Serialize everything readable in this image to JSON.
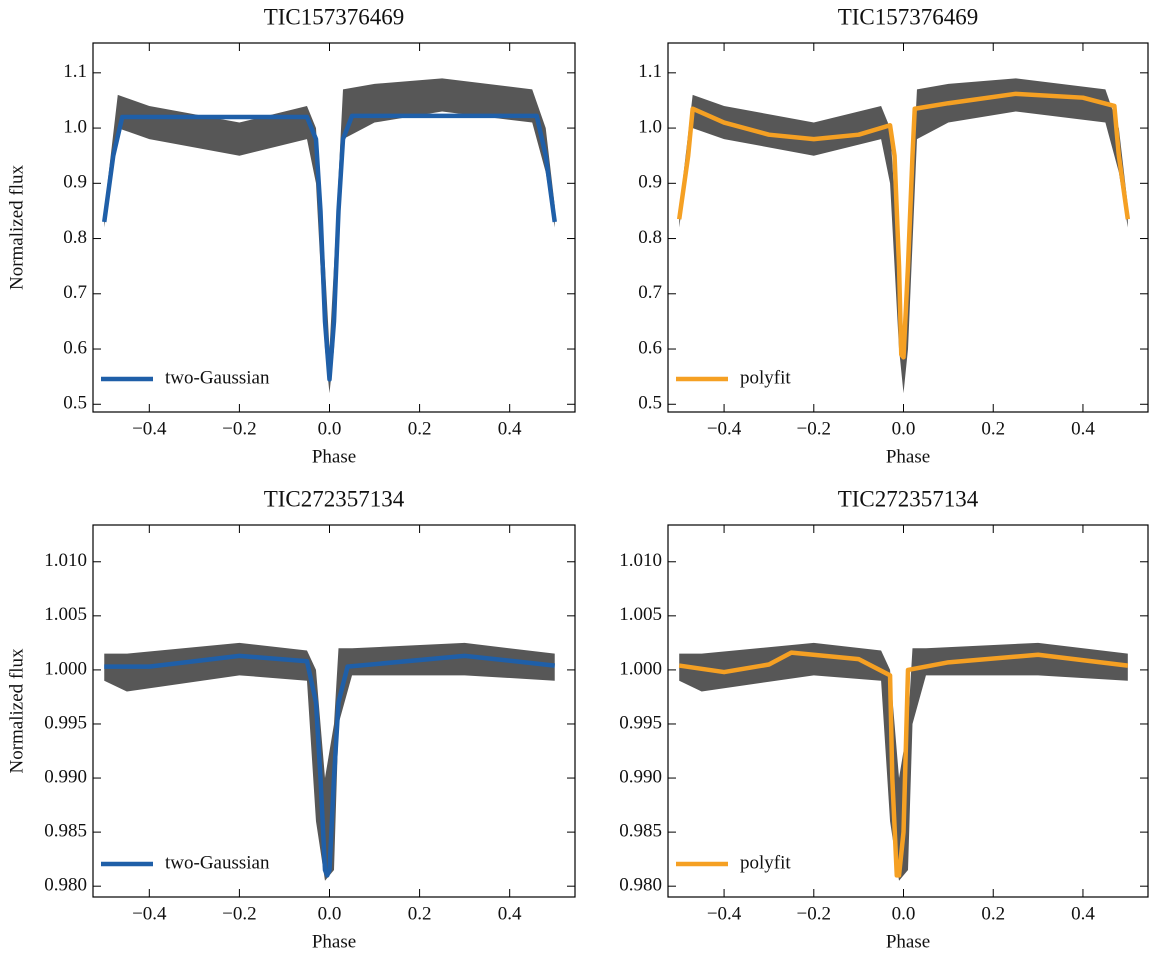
{
  "chart_data": [
    {
      "type": "line",
      "title": "TIC157376469",
      "xlabel": "Phase",
      "ylabel": "Normalized flux",
      "xlim": [
        -0.525,
        0.545
      ],
      "ylim": [
        0.486,
        1.154
      ],
      "xticks": [
        {
          "value": -0.4,
          "label": "−0.4"
        },
        {
          "value": -0.2,
          "label": "−0.2"
        },
        {
          "value": 0,
          "label": "0.0"
        },
        0.2,
        0.4
      ],
      "yticks": [
        0.5,
        0.6,
        0.7,
        0.8,
        0.9,
        {
          "value": 1,
          "label": "1.0"
        },
        1.1
      ],
      "legend": "lower left",
      "cloud": {
        "color": "#3a3a3a",
        "x": [
          -0.5,
          -0.47,
          -0.4,
          -0.2,
          -0.05,
          -0.03,
          -0.01,
          0,
          0.01,
          0.03,
          0.1,
          0.25,
          0.45,
          0.48,
          0.5
        ],
        "lower": [
          0.82,
          1.0,
          0.98,
          0.95,
          0.98,
          0.9,
          0.6,
          0.52,
          0.6,
          0.98,
          1.01,
          1.03,
          1.01,
          0.92,
          0.82
        ],
        "upper": [
          0.85,
          1.06,
          1.04,
          1.01,
          1.04,
          1.0,
          0.75,
          0.6,
          0.75,
          1.07,
          1.08,
          1.09,
          1.07,
          1.0,
          0.86
        ]
      },
      "series": [
        {
          "name": "two-Gaussian",
          "color": "#1f5fa8",
          "x": [
            -0.5,
            -0.48,
            -0.46,
            -0.05,
            -0.03,
            -0.02,
            -0.01,
            0,
            0.01,
            0.02,
            0.03,
            0.05,
            0.46,
            0.48,
            0.5
          ],
          "values": [
            0.83,
            0.95,
            1.02,
            1.02,
            0.98,
            0.85,
            0.65,
            0.545,
            0.65,
            0.85,
            0.98,
            1.022,
            1.022,
            0.95,
            0.83
          ]
        }
      ]
    },
    {
      "type": "line",
      "title": "TIC157376469",
      "xlabel": "Phase",
      "xlim": [
        -0.525,
        0.545
      ],
      "ylim": [
        0.486,
        1.154
      ],
      "xticks": [
        {
          "value": -0.4,
          "label": "−0.4"
        },
        {
          "value": -0.2,
          "label": "−0.2"
        },
        {
          "value": 0,
          "label": "0.0"
        },
        0.2,
        0.4
      ],
      "yticks": [
        0.5,
        0.6,
        0.7,
        0.8,
        0.9,
        {
          "value": 1,
          "label": "1.0"
        },
        1.1
      ],
      "legend": "lower left",
      "cloud": {
        "color": "#3a3a3a",
        "x": [
          -0.5,
          -0.47,
          -0.4,
          -0.2,
          -0.05,
          -0.03,
          -0.01,
          0,
          0.01,
          0.03,
          0.1,
          0.25,
          0.45,
          0.48,
          0.5
        ],
        "lower": [
          0.82,
          1.0,
          0.98,
          0.95,
          0.98,
          0.9,
          0.6,
          0.52,
          0.6,
          0.98,
          1.01,
          1.03,
          1.01,
          0.92,
          0.82
        ],
        "upper": [
          0.85,
          1.06,
          1.04,
          1.01,
          1.04,
          1.0,
          0.75,
          0.6,
          0.75,
          1.07,
          1.08,
          1.09,
          1.07,
          1.0,
          0.86
        ]
      },
      "series": [
        {
          "name": "polyfit",
          "color": "#f5a023",
          "x": [
            -0.5,
            -0.48,
            -0.47,
            -0.4,
            -0.3,
            -0.2,
            -0.1,
            -0.03,
            -0.02,
            -0.01,
            -0.005,
            0,
            0.01,
            0.02,
            0.025,
            0.1,
            0.25,
            0.4,
            0.47,
            0.48,
            0.5
          ],
          "values": [
            0.835,
            0.95,
            1.035,
            1.01,
            0.988,
            0.98,
            0.988,
            1.005,
            0.95,
            0.75,
            0.59,
            0.585,
            0.75,
            0.95,
            1.035,
            1.045,
            1.062,
            1.055,
            1.04,
            0.95,
            0.835
          ]
        }
      ]
    },
    {
      "type": "line",
      "title": "TIC272357134",
      "xlabel": "Phase",
      "ylabel": "Normalized flux",
      "xlim": [
        -0.525,
        0.545
      ],
      "ylim": [
        0.979,
        1.0134
      ],
      "xticks": [
        {
          "value": -0.4,
          "label": "−0.4"
        },
        {
          "value": -0.2,
          "label": "−0.2"
        },
        {
          "value": 0,
          "label": "0.0"
        },
        0.2,
        0.4
      ],
      "yticks": [
        {
          "value": 0.98,
          "label": "0.980"
        },
        0.985,
        {
          "value": 0.99,
          "label": "0.990"
        },
        0.995,
        {
          "value": 1,
          "label": "1.000"
        },
        1.005,
        {
          "value": 1.01,
          "label": "1.010"
        }
      ],
      "legend": "lower left",
      "cloud": {
        "color": "#3a3a3a",
        "x": [
          -0.5,
          -0.45,
          -0.2,
          -0.05,
          -0.03,
          -0.01,
          0.01,
          0.02,
          0.05,
          0.3,
          0.5
        ],
        "lower": [
          0.999,
          0.998,
          0.9995,
          0.999,
          0.986,
          0.9805,
          0.9815,
          0.995,
          0.9995,
          0.9995,
          0.999
        ],
        "upper": [
          1.0015,
          1.0015,
          1.0025,
          1.0018,
          1.0,
          0.99,
          0.995,
          1.002,
          1.002,
          1.0025,
          1.0015
        ]
      },
      "series": [
        {
          "name": "two-Gaussian",
          "color": "#1f5fa8",
          "x": [
            -0.5,
            -0.4,
            -0.2,
            -0.05,
            -0.03,
            -0.02,
            -0.01,
            -0.005,
            0,
            0.01,
            0.02,
            0.04,
            0.3,
            0.5
          ],
          "values": [
            1.0003,
            1.0003,
            1.0013,
            1.0008,
            0.997,
            0.99,
            0.9815,
            0.981,
            0.9815,
            0.99,
            0.997,
            1.0003,
            1.0013,
            1.0004
          ]
        }
      ]
    },
    {
      "type": "line",
      "title": "TIC272357134",
      "xlabel": "Phase",
      "xlim": [
        -0.525,
        0.545
      ],
      "ylim": [
        0.979,
        1.0134
      ],
      "xticks": [
        {
          "value": -0.4,
          "label": "−0.4"
        },
        {
          "value": -0.2,
          "label": "−0.2"
        },
        {
          "value": 0,
          "label": "0.0"
        },
        0.2,
        0.4
      ],
      "yticks": [
        {
          "value": 0.98,
          "label": "0.980"
        },
        0.985,
        {
          "value": 0.99,
          "label": "0.990"
        },
        0.995,
        {
          "value": 1,
          "label": "1.000"
        },
        1.005,
        {
          "value": 1.01,
          "label": "1.010"
        }
      ],
      "legend": "lower left",
      "cloud": {
        "color": "#3a3a3a",
        "x": [
          -0.5,
          -0.45,
          -0.2,
          -0.05,
          -0.03,
          -0.01,
          0.01,
          0.02,
          0.05,
          0.3,
          0.5
        ],
        "lower": [
          0.999,
          0.998,
          0.9995,
          0.999,
          0.986,
          0.9805,
          0.9815,
          0.995,
          0.9995,
          0.9995,
          0.999
        ],
        "upper": [
          1.0015,
          1.0015,
          1.0025,
          1.0018,
          1.0,
          0.99,
          0.995,
          1.002,
          1.002,
          1.0025,
          1.0015
        ]
      },
      "series": [
        {
          "name": "polyfit",
          "color": "#f5a023",
          "x": [
            -0.5,
            -0.4,
            -0.3,
            -0.25,
            -0.1,
            -0.03,
            -0.025,
            -0.015,
            -0.01,
            0,
            0.01,
            0.1,
            0.3,
            0.5
          ],
          "values": [
            1.0004,
            0.9998,
            1.0005,
            1.0016,
            1.001,
            0.9995,
            0.99,
            0.981,
            0.981,
            0.985,
            1.0,
            1.0007,
            1.0014,
            1.0004
          ]
        }
      ]
    }
  ]
}
